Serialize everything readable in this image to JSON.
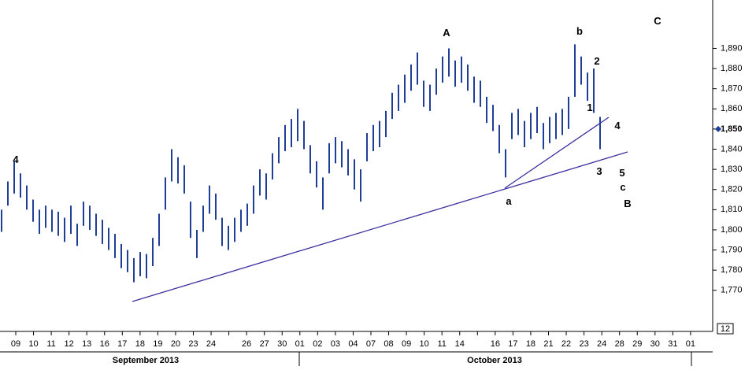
{
  "chart_data": {
    "type": "hilo",
    "color": "#1f3f96",
    "high": [
      1810,
      1824,
      1834,
      1828,
      1822,
      1815,
      1810,
      1812,
      1810,
      1809,
      1806,
      1812,
      1803,
      1814,
      1812,
      1808,
      1805,
      1801,
      1798,
      1793,
      1790,
      1786,
      1789,
      1788,
      1796,
      1808,
      1826,
      1840,
      1836,
      1832,
      1814,
      1800,
      1812,
      1822,
      1818,
      1806,
      1802,
      1806,
      1810,
      1813,
      1822,
      1830,
      1828,
      1838,
      1846,
      1852,
      1855,
      1860,
      1854,
      1842,
      1834,
      1826,
      1843,
      1846,
      1844,
      1840,
      1835,
      1830,
      1848,
      1852,
      1854,
      1859,
      1868,
      1872,
      1877,
      1882,
      1888,
      1874,
      1872,
      1880,
      1886,
      1890,
      1884,
      1886,
      1882,
      1876,
      1874,
      1866,
      1862,
      1852,
      1840,
      1858,
      1860,
      1854,
      1858,
      1861,
      1853,
      1856,
      1858,
      1860,
      1866,
      1892,
      1886,
      1878,
      1880,
      1856
    ],
    "low": [
      1799,
      1812,
      1818,
      1816,
      1810,
      1804,
      1798,
      1801,
      1799,
      1797,
      1794,
      1798,
      1792,
      1802,
      1800,
      1797,
      1793,
      1790,
      1786,
      1781,
      1779,
      1774,
      1777,
      1776,
      1782,
      1792,
      1810,
      1824,
      1823,
      1818,
      1796,
      1786,
      1799,
      1808,
      1805,
      1792,
      1790,
      1794,
      1799,
      1802,
      1808,
      1817,
      1815,
      1825,
      1833,
      1839,
      1841,
      1844,
      1840,
      1828,
      1821,
      1810,
      1828,
      1833,
      1831,
      1827,
      1820,
      1814,
      1834,
      1839,
      1841,
      1846,
      1855,
      1859,
      1863,
      1869,
      1872,
      1861,
      1859,
      1867,
      1873,
      1876,
      1871,
      1873,
      1869,
      1863,
      1861,
      1853,
      1849,
      1838,
      1826,
      1845,
      1847,
      1841,
      1845,
      1848,
      1840,
      1843,
      1845,
      1847,
      1850,
      1866,
      1872,
      1864,
      1858,
      1840
    ],
    "categories": [
      "09",
      "10",
      "11",
      "12",
      "13",
      "16",
      "17",
      "18",
      "19",
      "20",
      "23",
      "24",
      null,
      "26",
      "27",
      "30",
      "01",
      "02",
      "03",
      "04",
      "07",
      "08",
      "09",
      "10",
      "11",
      "14",
      null,
      "16",
      "17",
      "18",
      "21",
      "22",
      "23",
      "24",
      "28",
      "29",
      "30",
      "31",
      "01"
    ],
    "months": [
      "September 2013",
      "October 2013"
    ],
    "ylim": [
      1750,
      1914
    ],
    "yticks": [
      {
        "value": 1770,
        "label": "1,770"
      },
      {
        "value": 1780,
        "label": "1,780"
      },
      {
        "value": 1790,
        "label": "1,790"
      },
      {
        "value": 1800,
        "label": "1,800"
      },
      {
        "value": 1810,
        "label": "1,810"
      },
      {
        "value": 1820,
        "label": "1,820"
      },
      {
        "value": 1830,
        "label": "1,830"
      },
      {
        "value": 1840,
        "label": "1,840"
      },
      {
        "value": 1850,
        "label": "1,850"
      },
      {
        "value": 1860,
        "label": "1,860"
      },
      {
        "value": 1870,
        "label": "1,870"
      },
      {
        "value": 1880,
        "label": "1,880"
      },
      {
        "value": 1890,
        "label": "1,890"
      }
    ],
    "last_value": 1850,
    "corner_label": "12",
    "annotations": [
      "4",
      "A",
      "b",
      "C",
      "2",
      "1",
      "4",
      "3",
      "5",
      "c",
      "B",
      "a"
    ]
  }
}
